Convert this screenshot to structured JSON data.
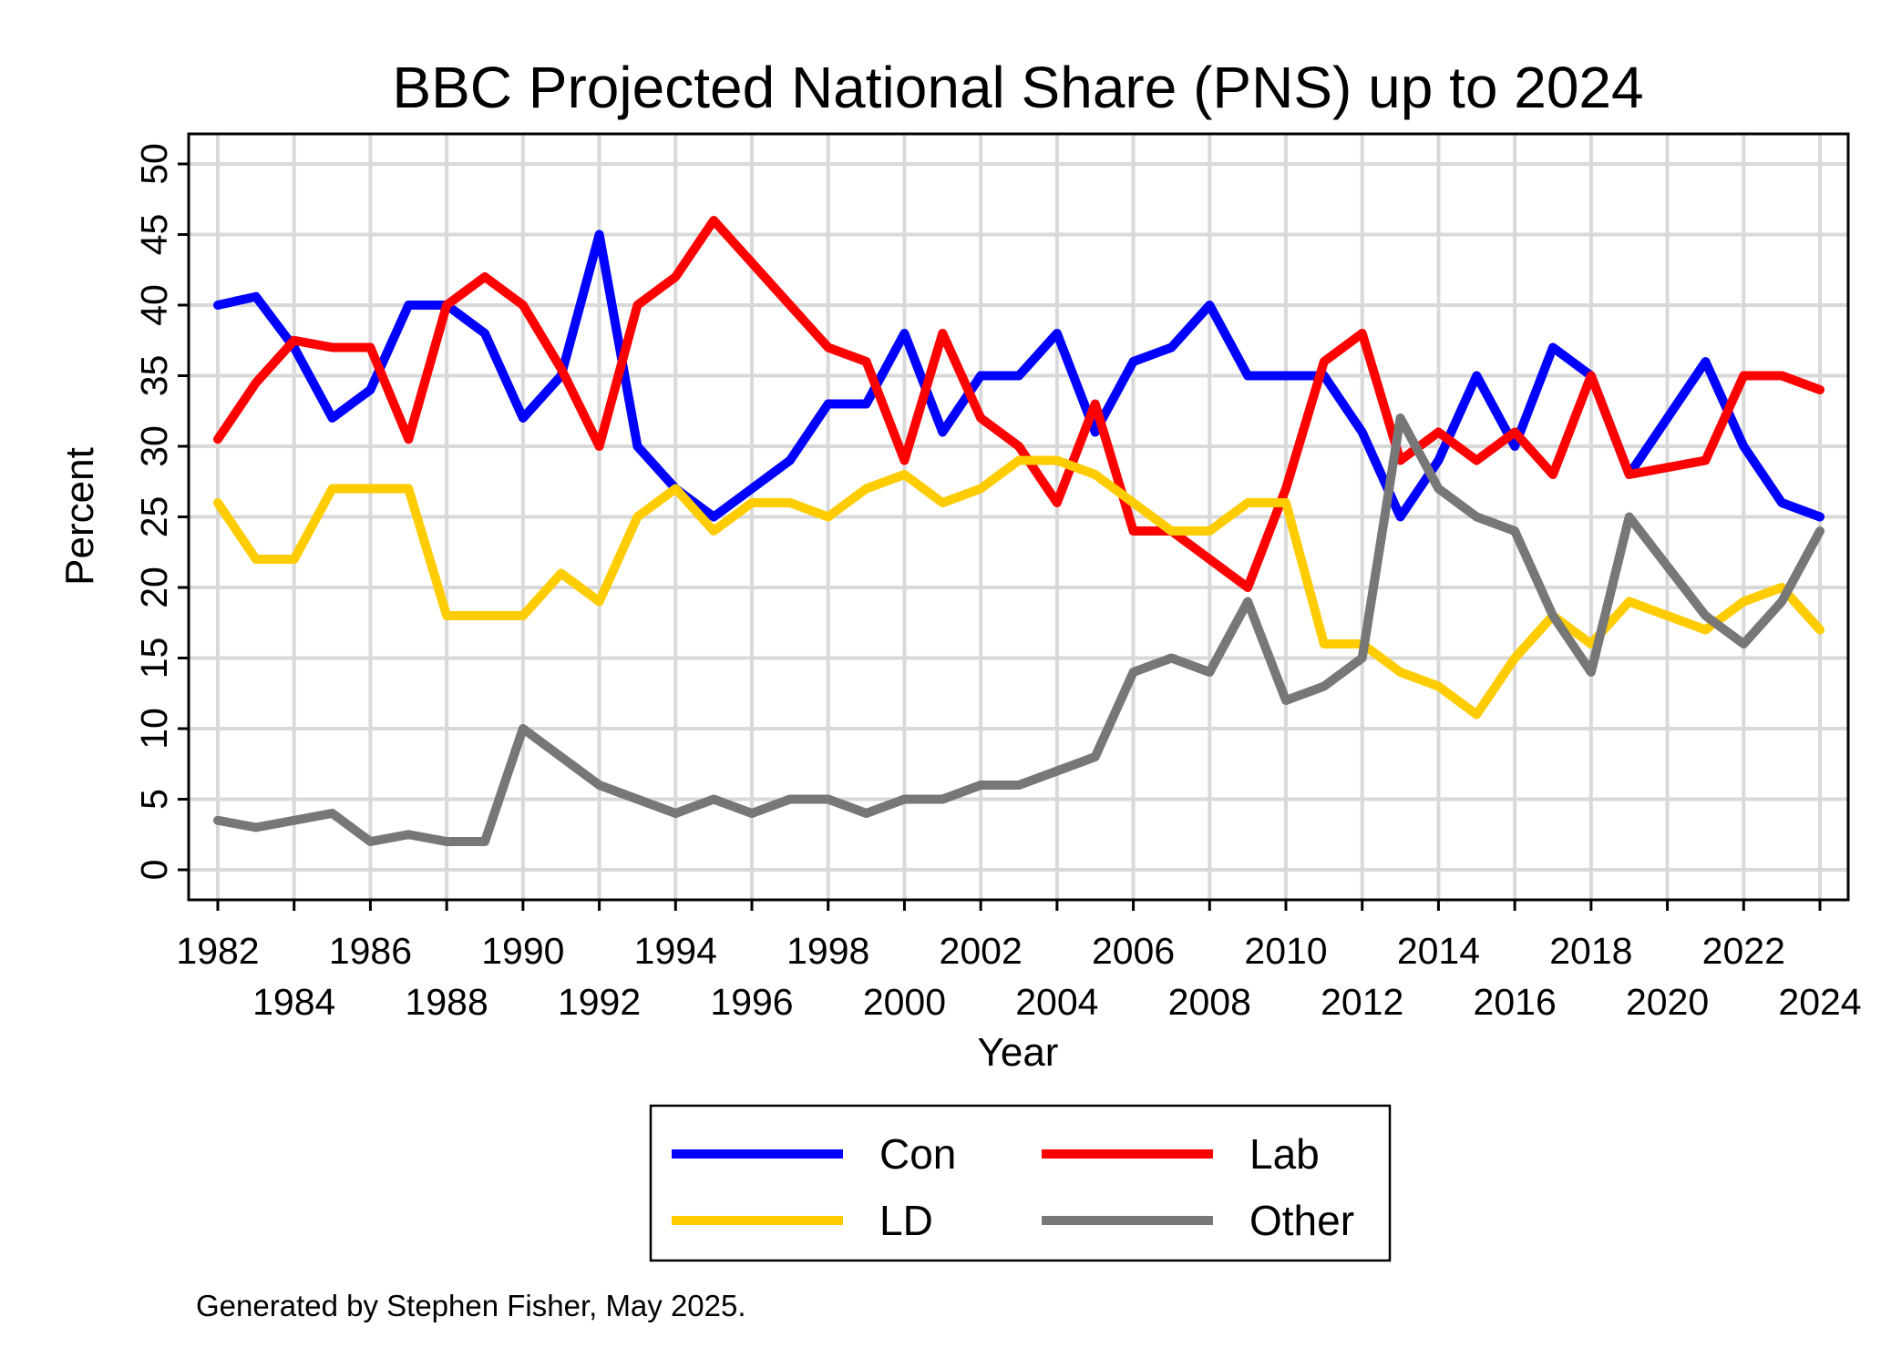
{
  "chart_data": {
    "type": "line",
    "title": "BBC Projected National Share (PNS) up to 2024",
    "xlabel": "Year",
    "ylabel": "Percent",
    "xlim": [
      1982,
      2024
    ],
    "ylim": [
      0,
      50
    ],
    "grid": true,
    "legend_placement": "bottom",
    "x_ticks": [
      1982,
      1984,
      1986,
      1988,
      1990,
      1992,
      1994,
      1996,
      1998,
      2000,
      2002,
      2004,
      2006,
      2008,
      2010,
      2012,
      2014,
      2016,
      2018,
      2020,
      2022,
      2024
    ],
    "y_ticks": [
      0,
      5,
      10,
      15,
      20,
      25,
      30,
      35,
      40,
      45,
      50
    ],
    "x": [
      1982,
      1983,
      1984,
      1985,
      1986,
      1987,
      1988,
      1989,
      1990,
      1991,
      1992,
      1993,
      1994,
      1995,
      1996,
      1997,
      1998,
      1999,
      2000,
      2001,
      2002,
      2003,
      2004,
      2005,
      2006,
      2007,
      2008,
      2009,
      2010,
      2011,
      2012,
      2013,
      2014,
      2015,
      2016,
      2017,
      2018,
      2019,
      2020,
      2021,
      2022,
      2023,
      2024
    ],
    "series": [
      {
        "name": "Con",
        "color": "#0000ff",
        "values": [
          40,
          40.6,
          37,
          32,
          34,
          40,
          40,
          38,
          32,
          35,
          45,
          30,
          27,
          25,
          27,
          29,
          33,
          33,
          38,
          31,
          35,
          35,
          38,
          31,
          36,
          37,
          40,
          35,
          35,
          35,
          31,
          25,
          29,
          35,
          30,
          37,
          35,
          28,
          32,
          36,
          30,
          26,
          25
        ]
      },
      {
        "name": "Lab",
        "color": "#ff0000",
        "values": [
          30.5,
          34.5,
          37.5,
          37,
          37,
          30.5,
          40,
          42,
          40,
          35.5,
          30,
          40,
          42,
          46,
          43,
          40,
          37,
          36,
          29,
          38,
          32,
          30,
          26,
          33,
          24,
          24,
          22,
          20,
          27,
          36,
          38,
          29,
          31,
          29,
          31,
          28,
          35,
          28,
          28.5,
          29,
          35,
          35,
          34
        ]
      },
      {
        "name": "LD",
        "color": "#ffcc00",
        "values": [
          26,
          22,
          22,
          27,
          27,
          27,
          18,
          18,
          18,
          21,
          19,
          25,
          27,
          24,
          26,
          26,
          25,
          27,
          28,
          26,
          27,
          29,
          29,
          28,
          26,
          24,
          24,
          26,
          26,
          16,
          16,
          14,
          13,
          11,
          15,
          18,
          16,
          19,
          18,
          17,
          19,
          20,
          17
        ]
      },
      {
        "name": "Other",
        "color": "#777777",
        "values": [
          3.5,
          3,
          3.5,
          4,
          2,
          2.5,
          2,
          2,
          10,
          8,
          6,
          5,
          4,
          5,
          4,
          5,
          5,
          4,
          5,
          5,
          6,
          6,
          7,
          8,
          14,
          15,
          14,
          19,
          12,
          13,
          15,
          32,
          27,
          25,
          24,
          18,
          14,
          25,
          21.5,
          18,
          16,
          19,
          24
        ]
      }
    ],
    "footnote": "Generated by Stephen Fisher, May 2025."
  }
}
